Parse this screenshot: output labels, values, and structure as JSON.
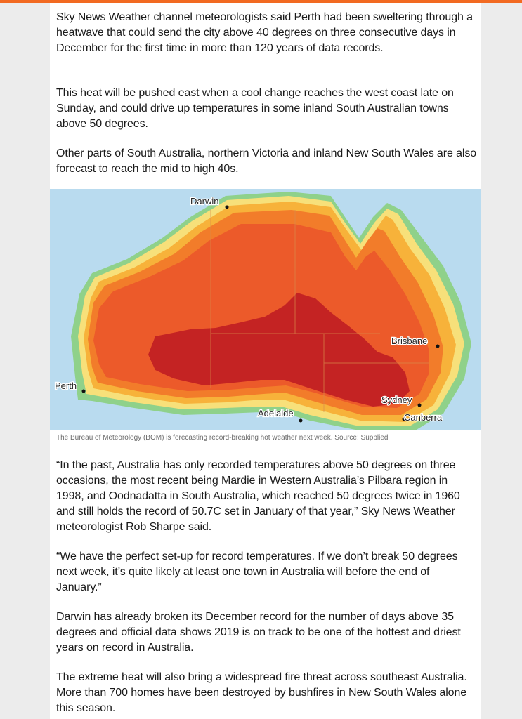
{
  "article": {
    "paragraphs_top": [
      "Sky News Weather channel meteorologists said Perth had been sweltering through a heatwave that could send the city above 40 degrees on three consecutive days in December for the first time in more than 120 years of data records.",
      "This heat will be pushed east when a cool change reaches the west coast late on Sunday, and could drive up temperatures in some inland South Australian towns above 50 degrees.",
      "Other parts of South Australia, northern Victoria and inland New South Wales are also forecast to reach the mid to high 40s."
    ],
    "caption": "The Bureau of Meteorology (BOM) is forecasting record-breaking hot weather next week. Source: Supplied",
    "paragraphs_bottom": [
      "“In the past, Australia has only recorded temperatures above 50 degrees on three occasions, the most recent being Mardie in Western Australia’s Pilbara region in 1998, and Oodnadatta in South Australia, which reached 50 degrees twice in 1960 and still holds the record of 50.7C set in January of that year,” Sky News Weather meteorologist Rob Sharpe said.",
      "“We have the perfect set-up for record temperatures. If we don’t break 50 degrees next week, it’s quite likely at least one town in Australia will before the end of January.”",
      "Darwin has already broken its December record for the number of days above 35 degrees and official data shows 2019 is on track to be one of the hottest and driest years on record in Australia.",
      "The extreme heat will also bring a widespread fire threat across southeast Australia. More than 700 homes have been destroyed by bushfires in New South Wales alone this season."
    ]
  },
  "map": {
    "cities": {
      "darwin": "Darwin",
      "brisbane": "Brisbane",
      "perth": "Perth",
      "sydney": "Sydney",
      "adelaide": "Adelaide",
      "canberra": "Canberra"
    },
    "colors": {
      "ocean": "#b9dbef",
      "coast_green": "#8fd18a",
      "yellow": "#f7e07a",
      "orange_light": "#f7b23a",
      "orange": "#f27c2a",
      "red_orange": "#ec5a2a",
      "dark_red": "#c42323"
    }
  },
  "theme": {
    "accent": "#f26a21"
  }
}
